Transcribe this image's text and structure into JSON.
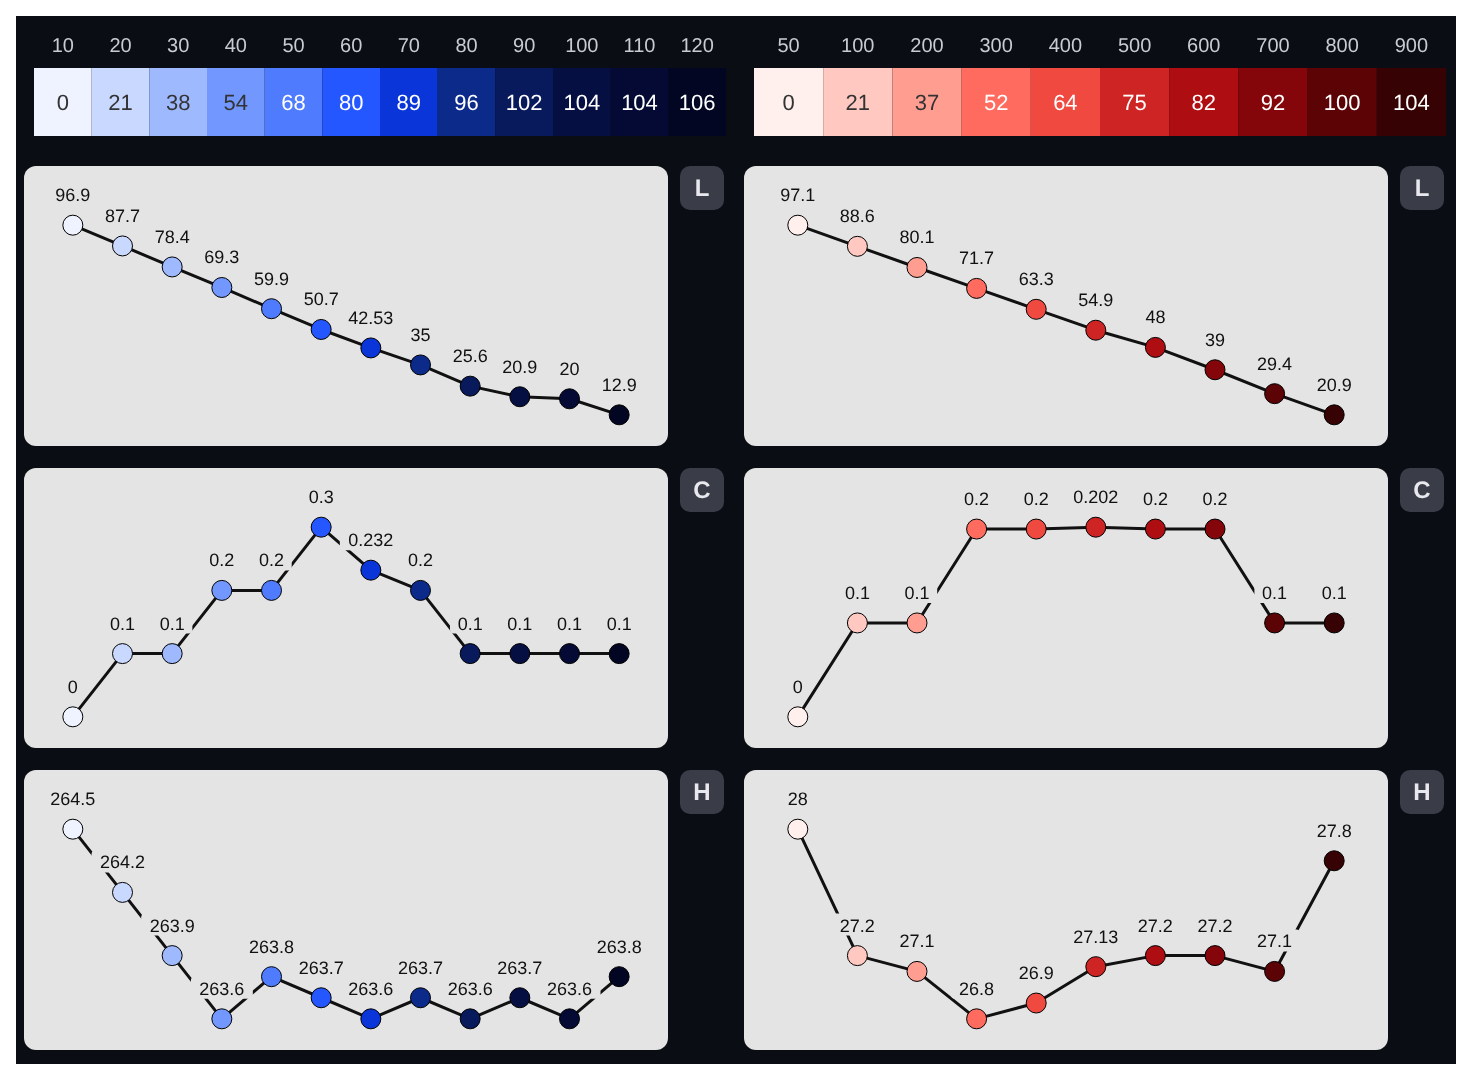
{
  "chart_data": [
    {
      "type": "heatmap",
      "y_categories": [
        null
      ],
      "categories": [
        "10",
        "20",
        "30",
        "40",
        "50",
        "60",
        "70",
        "80",
        "90",
        "100",
        "110",
        "120"
      ],
      "cells": [
        [
          0,
          21,
          38,
          54,
          68,
          80,
          89,
          96,
          102,
          104,
          104,
          106
        ]
      ],
      "colors": [
        "#eef3ff",
        "#c9d8ff",
        "#9fb9ff",
        "#7298ff",
        "#4f7cff",
        "#2457ff",
        "#0a35d8",
        "#0b2a8a",
        "#08195c",
        "#050f42",
        "#040a33",
        "#030622"
      ],
      "data_labels": true
    },
    {
      "type": "heatmap",
      "y_categories": [
        null
      ],
      "categories": [
        "50",
        "100",
        "200",
        "300",
        "400",
        "500",
        "600",
        "700",
        "800",
        "900"
      ],
      "cells": [
        [
          0,
          21,
          37,
          52,
          64,
          75,
          82,
          92,
          100,
          104
        ]
      ],
      "colors": [
        "#fff0ee",
        "#ffc8c0",
        "#ff9d90",
        "#ff6b5e",
        "#ef4940",
        "#cf2424",
        "#ae0d12",
        "#84050a",
        "#5c0306",
        "#360204"
      ],
      "data_labels": true
    },
    {
      "type": "line",
      "color": "#111111",
      "ylabel": "L",
      "categories": [
        null,
        null,
        null,
        null,
        null,
        null,
        null,
        null,
        null,
        null,
        null,
        null
      ],
      "values": [
        96.9,
        87.7,
        78.4,
        69.3,
        59.9,
        50.7,
        42.53,
        35,
        25.6,
        20.9,
        20,
        12.9
      ],
      "colors": [
        "#eef3ff",
        "#c9d8ff",
        "#9fb9ff",
        "#7298ff",
        "#4f7cff",
        "#2457ff",
        "#0a35d8",
        "#0b2a8a",
        "#08195c",
        "#050f42",
        "#040a33",
        "#030622"
      ],
      "marker": "circle",
      "data_labels": true,
      "tick_labels": false
    },
    {
      "type": "line",
      "color": "#111111",
      "ylabel": "L",
      "categories": [
        null,
        null,
        null,
        null,
        null,
        null,
        null,
        null,
        null,
        null
      ],
      "values": [
        97.1,
        88.6,
        80.1,
        71.7,
        63.3,
        54.9,
        48,
        39,
        29.4,
        20.9
      ],
      "colors": [
        "#fff0ee",
        "#ffc8c0",
        "#ff9d90",
        "#ff6b5e",
        "#ef4940",
        "#cf2424",
        "#ae0d12",
        "#84050a",
        "#5c0306",
        "#360204"
      ],
      "marker": "circle",
      "data_labels": true,
      "tick_labels": false
    },
    {
      "type": "line",
      "color": "#111111",
      "ylabel": "C",
      "categories": [
        null,
        null,
        null,
        null,
        null,
        null,
        null,
        null,
        null,
        null,
        null,
        null
      ],
      "values": [
        0,
        0.1,
        0.1,
        0.2,
        0.2,
        0.3,
        0.232,
        0.2,
        0.1,
        0.1,
        0.1,
        0.1
      ],
      "colors": [
        "#eef3ff",
        "#c9d8ff",
        "#9fb9ff",
        "#7298ff",
        "#4f7cff",
        "#2457ff",
        "#0a35d8",
        "#0b2a8a",
        "#08195c",
        "#050f42",
        "#040a33",
        "#030622"
      ],
      "marker": "circle",
      "data_labels": true,
      "tick_labels": false
    },
    {
      "type": "line",
      "color": "#111111",
      "ylabel": "C",
      "categories": [
        null,
        null,
        null,
        null,
        null,
        null,
        null,
        null,
        null,
        null
      ],
      "values": [
        0,
        0.1,
        0.1,
        0.2,
        0.2,
        0.202,
        0.2,
        0.2,
        0.1,
        0.1
      ],
      "colors": [
        "#fff0ee",
        "#ffc8c0",
        "#ff9d90",
        "#ff6b5e",
        "#ef4940",
        "#cf2424",
        "#ae0d12",
        "#84050a",
        "#5c0306",
        "#360204"
      ],
      "marker": "circle",
      "data_labels": true,
      "tick_labels": false
    },
    {
      "type": "line",
      "color": "#111111",
      "ylabel": "H",
      "categories": [
        null,
        null,
        null,
        null,
        null,
        null,
        null,
        null,
        null,
        null,
        null,
        null
      ],
      "values": [
        264.5,
        264.2,
        263.9,
        263.6,
        263.8,
        263.7,
        263.6,
        263.7,
        263.6,
        263.7,
        263.6,
        263.8
      ],
      "colors": [
        "#eef3ff",
        "#c9d8ff",
        "#9fb9ff",
        "#7298ff",
        "#4f7cff",
        "#2457ff",
        "#0a35d8",
        "#0b2a8a",
        "#08195c",
        "#050f42",
        "#040a33",
        "#030622"
      ],
      "marker": "circle",
      "data_labels": true,
      "tick_labels": false
    },
    {
      "type": "line",
      "color": "#111111",
      "ylabel": "H",
      "categories": [
        null,
        null,
        null,
        null,
        null,
        null,
        null,
        null,
        null,
        null
      ],
      "values": [
        28,
        27.2,
        27.1,
        26.8,
        26.9,
        27.13,
        27.2,
        27.2,
        27.1,
        27.8
      ],
      "colors": [
        "#fff0ee",
        "#ffc8c0",
        "#ff9d90",
        "#ff6b5e",
        "#ef4940",
        "#cf2424",
        "#ae0d12",
        "#84050a",
        "#5c0306",
        "#360204"
      ],
      "marker": "circle",
      "data_labels": true,
      "tick_labels": false
    }
  ]
}
